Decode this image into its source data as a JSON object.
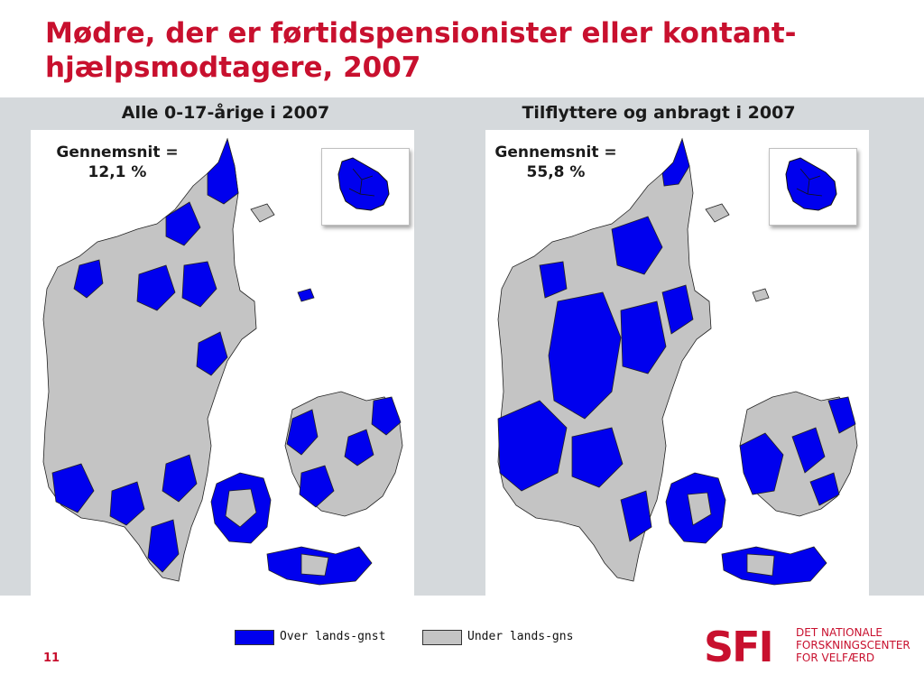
{
  "slide": {
    "title_line1": "Mødre, der er førtidspensionister eller kontant-",
    "title_line2": "hjælpsmodtagere, 2007",
    "page_number": "11"
  },
  "maps": [
    {
      "title": "Alle 0-17-årige i 2007",
      "avg_label": "Gennemsnit =",
      "avg_value": "12,1 %"
    },
    {
      "title": "Tilflyttere og anbragt i 2007",
      "avg_label": "Gennemsnit =",
      "avg_value": "55,8 %"
    }
  ],
  "legend": {
    "above": {
      "label": "Over lands-gnst",
      "color": "#0000ee"
    },
    "below": {
      "label": "Under lands-gns",
      "color": "#c4c4c4"
    }
  },
  "colors": {
    "accent": "#c8102e",
    "above_fill": "#0000ee",
    "below_fill": "#c4c4c4",
    "band": "#d5d9dc"
  },
  "logo": {
    "mark": "SFI",
    "line1": "DET NATIONALE",
    "line2": "FORSKNINGSCENTER",
    "line3": "FOR VELFÆRD"
  }
}
